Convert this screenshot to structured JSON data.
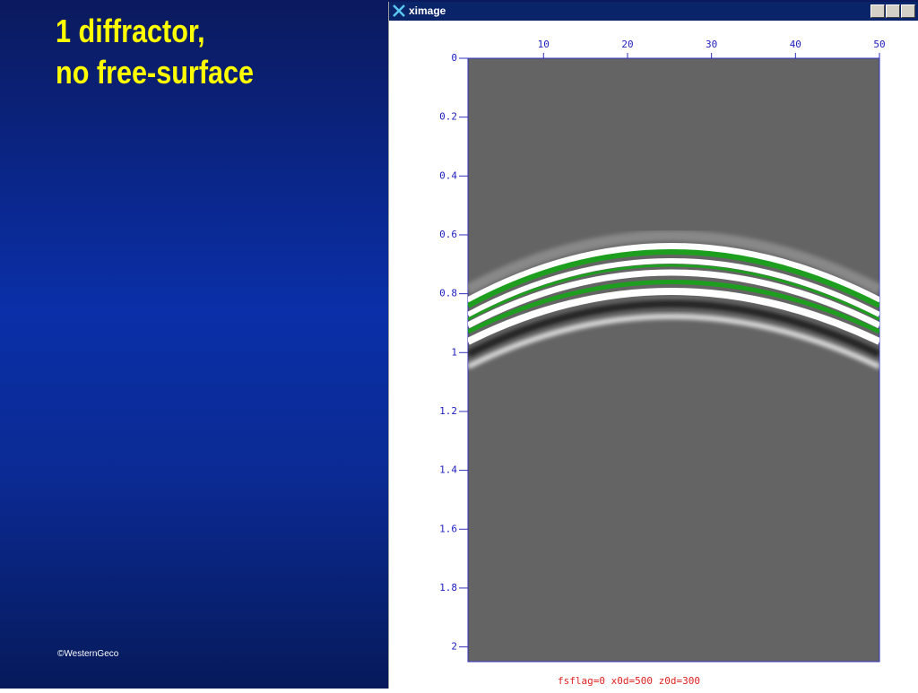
{
  "slide": {
    "title": [
      "1 diffractor,",
      "no free-surface"
    ],
    "copyright": "©WesternGeco"
  },
  "window": {
    "title": "ximage"
  },
  "chart_data": {
    "type": "image",
    "caption": "fsflag=0 x0d=500 z0d=300",
    "xlim": [
      1,
      50
    ],
    "xticks": [
      10,
      20,
      30,
      40,
      50
    ],
    "ylim": [
      0,
      2.05
    ],
    "yticks": [
      0,
      0.2,
      0.4,
      0.6,
      0.8,
      1,
      1.2,
      1.4,
      1.6,
      1.8,
      2
    ]
  }
}
